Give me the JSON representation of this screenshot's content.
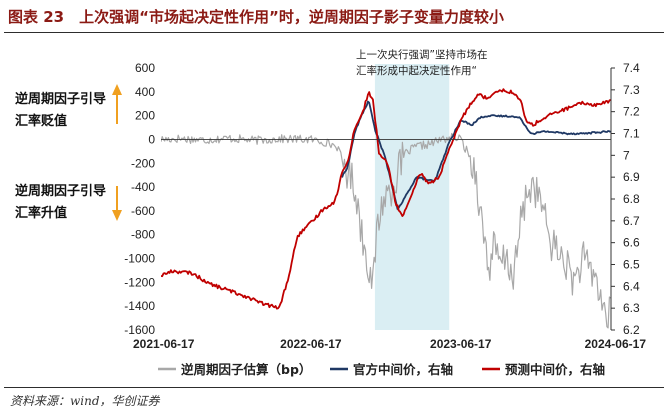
{
  "header": {
    "title": "图表 23　上次强调“市场起决定性作用”时，逆周期因子影子变量力度较小"
  },
  "footer": {
    "source": "资料来源：wind，华创证券"
  },
  "colors": {
    "title": "#8b1a14",
    "shadow_series": "#a8a8a8",
    "official_series": "#1f3864",
    "forecast_series": "#c00000",
    "highlight_band": "#daeef3",
    "arrow": "#f0a020"
  },
  "chart_data": {
    "type": "line",
    "x_ticks": [
      "2021-06-17",
      "2022-06-17",
      "2023-06-17",
      "2024-06-17"
    ],
    "x_range": [
      "2021-06-17",
      "2024-06-17"
    ],
    "y_left": {
      "range": [
        -1600,
        600
      ],
      "ticks": [
        "600",
        "400",
        "200",
        "0",
        "-200",
        "-400",
        "-600",
        "-800",
        "-1000",
        "-1200",
        "-1400",
        "-1600"
      ]
    },
    "y_right": {
      "range": [
        6.2,
        7.4
      ],
      "ticks": [
        "7.4",
        "7.3",
        "7.2",
        "7.1",
        "7",
        "6.9",
        "6.8",
        "6.7",
        "6.6",
        "6.5",
        "6.4",
        "6.3",
        "6.2"
      ]
    },
    "side_labels": {
      "upper_line1": "逆周期因子引导",
      "upper_line2": "汇率贬值",
      "lower_line1": "逆周期因子引导",
      "lower_line2": "汇率升值"
    },
    "annotation": {
      "line1": "上一次央行强调”坚持市场在",
      "line2": "汇率形成中起决定性作用“",
      "band_start": "2022-11-20",
      "band_end": "2023-05-20"
    },
    "legend": [
      "逆周期因子估算（bp）",
      "官方中间价，右轴",
      "预测中间价，右轴"
    ],
    "series": [
      {
        "name": "逆周期因子估算（bp）",
        "axis": "left",
        "points": [
          [
            "2021-06-17",
            0
          ],
          [
            "2021-08-01",
            8
          ],
          [
            "2021-10-01",
            -5
          ],
          [
            "2021-12-01",
            10
          ],
          [
            "2022-02-01",
            -8
          ],
          [
            "2022-04-01",
            5
          ],
          [
            "2022-06-17",
            0
          ],
          [
            "2022-07-20",
            -20
          ],
          [
            "2022-08-20",
            -60
          ],
          [
            "2022-09-10",
            -250
          ],
          [
            "2022-09-25",
            -330
          ],
          [
            "2022-10-05",
            -440
          ],
          [
            "2022-10-15",
            -700
          ],
          [
            "2022-10-25",
            -900
          ],
          [
            "2022-11-05",
            -1050
          ],
          [
            "2022-11-15",
            -1250
          ],
          [
            "2022-11-25",
            -750
          ],
          [
            "2022-12-10",
            -500
          ],
          [
            "2023-01-01",
            -400
          ],
          [
            "2023-02-01",
            -120
          ],
          [
            "2023-03-01",
            -60
          ],
          [
            "2023-04-01",
            -40
          ],
          [
            "2023-05-01",
            0
          ],
          [
            "2023-06-01",
            20
          ],
          [
            "2023-06-17",
            0
          ],
          [
            "2023-07-10",
            -150
          ],
          [
            "2023-07-25",
            -300
          ],
          [
            "2023-08-05",
            -650
          ],
          [
            "2023-08-15",
            -850
          ],
          [
            "2023-08-25",
            -1100
          ],
          [
            "2023-09-05",
            -900
          ],
          [
            "2023-09-20",
            -1050
          ],
          [
            "2023-10-05",
            -1000
          ],
          [
            "2023-10-25",
            -1150
          ],
          [
            "2023-11-10",
            -700
          ],
          [
            "2023-11-25",
            -450
          ],
          [
            "2023-12-10",
            -380
          ],
          [
            "2024-01-01",
            -550
          ],
          [
            "2024-01-20",
            -850
          ],
          [
            "2024-02-10",
            -950
          ],
          [
            "2024-03-01",
            -1050
          ],
          [
            "2024-03-20",
            -1200
          ],
          [
            "2024-04-10",
            -1000
          ],
          [
            "2024-04-25",
            -1100
          ],
          [
            "2024-05-10",
            -1150
          ],
          [
            "2024-05-25",
            -1350
          ],
          [
            "2024-06-05",
            -1500
          ],
          [
            "2024-06-17",
            -1450
          ]
        ]
      },
      {
        "name": "官方中间价，右轴",
        "axis": "right",
        "points": [
          [
            "2022-09-01",
            6.9
          ],
          [
            "2022-09-15",
            6.95
          ],
          [
            "2022-10-01",
            7.1
          ],
          [
            "2022-10-20",
            7.19
          ],
          [
            "2022-11-05",
            7.25
          ],
          [
            "2022-11-20",
            7.12
          ],
          [
            "2022-12-15",
            6.99
          ],
          [
            "2023-01-15",
            6.75
          ],
          [
            "2023-03-01",
            6.9
          ],
          [
            "2023-04-15",
            6.88
          ],
          [
            "2023-05-20",
            7.06
          ],
          [
            "2023-06-17",
            7.16
          ],
          [
            "2023-07-15",
            7.14
          ],
          [
            "2023-08-01",
            7.17
          ],
          [
            "2023-08-15",
            7.18
          ],
          [
            "2023-09-10",
            7.18
          ],
          [
            "2023-10-15",
            7.18
          ],
          [
            "2023-11-10",
            7.17
          ],
          [
            "2023-11-30",
            7.11
          ],
          [
            "2023-12-10",
            7.1
          ],
          [
            "2024-01-10",
            7.11
          ],
          [
            "2024-03-01",
            7.1
          ],
          [
            "2024-04-10",
            7.1
          ],
          [
            "2024-06-17",
            7.11
          ]
        ]
      },
      {
        "name": "预测中间价，右轴",
        "axis": "right",
        "points": [
          [
            "2021-06-17",
            6.45
          ],
          [
            "2021-07-15",
            6.47
          ],
          [
            "2021-09-01",
            6.46
          ],
          [
            "2021-10-15",
            6.41
          ],
          [
            "2021-12-01",
            6.38
          ],
          [
            "2022-01-15",
            6.35
          ],
          [
            "2022-02-20",
            6.32
          ],
          [
            "2022-04-01",
            6.3
          ],
          [
            "2022-04-25",
            6.45
          ],
          [
            "2022-05-15",
            6.63
          ],
          [
            "2022-06-17",
            6.69
          ],
          [
            "2022-07-15",
            6.75
          ],
          [
            "2022-08-15",
            6.79
          ],
          [
            "2022-09-01",
            6.92
          ],
          [
            "2022-09-15",
            6.97
          ],
          [
            "2022-10-01",
            7.12
          ],
          [
            "2022-10-20",
            7.19
          ],
          [
            "2022-11-05",
            7.29
          ],
          [
            "2022-11-15",
            7.25
          ],
          [
            "2022-12-01",
            7.0
          ],
          [
            "2022-12-20",
            6.97
          ],
          [
            "2023-01-10",
            6.78
          ],
          [
            "2023-01-25",
            6.72
          ],
          [
            "2023-02-15",
            6.8
          ],
          [
            "2023-03-10",
            6.92
          ],
          [
            "2023-04-01",
            6.87
          ],
          [
            "2023-04-25",
            6.9
          ],
          [
            "2023-05-15",
            7.0
          ],
          [
            "2023-06-01",
            7.08
          ],
          [
            "2023-06-17",
            7.16
          ],
          [
            "2023-07-15",
            7.25
          ],
          [
            "2023-08-01",
            7.28
          ],
          [
            "2023-08-20",
            7.26
          ],
          [
            "2023-09-15",
            7.3
          ],
          [
            "2023-10-20",
            7.29
          ],
          [
            "2023-11-10",
            7.25
          ],
          [
            "2023-11-25",
            7.15
          ],
          [
            "2023-12-10",
            7.14
          ],
          [
            "2024-01-15",
            7.18
          ],
          [
            "2024-02-10",
            7.2
          ],
          [
            "2024-03-10",
            7.22
          ],
          [
            "2024-04-10",
            7.24
          ],
          [
            "2024-05-10",
            7.23
          ],
          [
            "2024-06-17",
            7.25
          ]
        ]
      }
    ]
  }
}
